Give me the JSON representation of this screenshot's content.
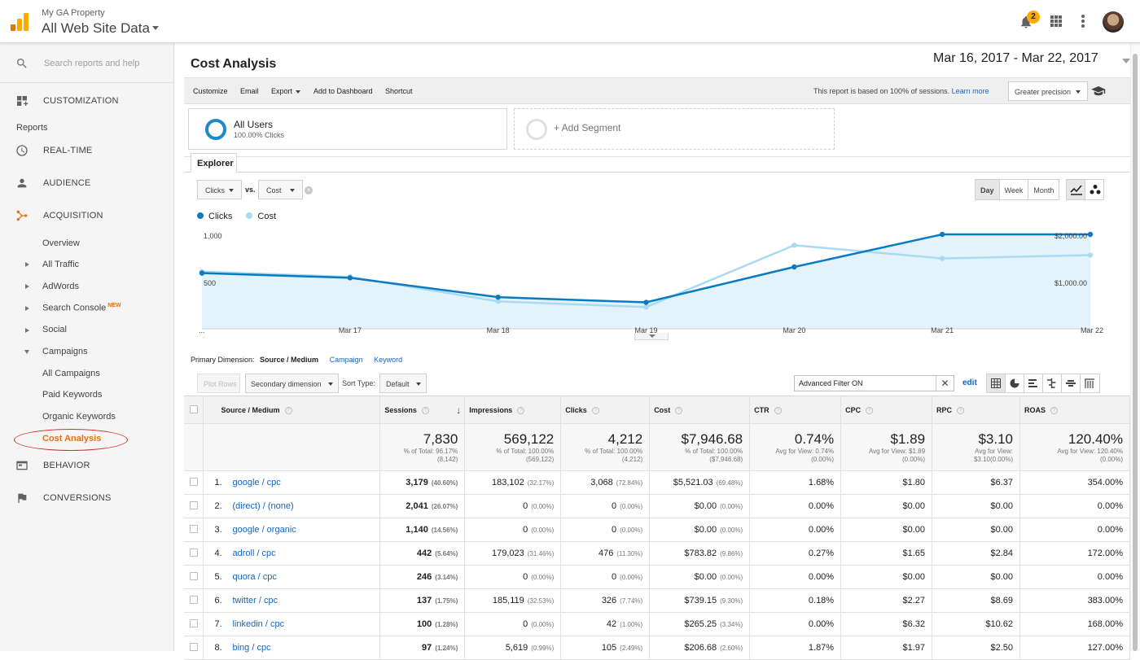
{
  "header": {
    "property_name": "My GA Property",
    "view_name": "All Web Site Data",
    "notification_count": "2",
    "brand_color": "#f9ab00"
  },
  "sidebar": {
    "search_placeholder": "Search reports and help",
    "customization": "CUSTOMIZATION",
    "reports_label": "Reports",
    "realtime": "REAL-TIME",
    "audience": "AUDIENCE",
    "acquisition": "ACQUISITION",
    "behavior": "BEHAVIOR",
    "conversions": "CONVERSIONS",
    "acq_items": {
      "overview": "Overview",
      "all_traffic": "All Traffic",
      "adwords": "AdWords",
      "search_console": "Search Console",
      "new_badge": "NEW",
      "social": "Social",
      "campaigns": "Campaigns",
      "all_campaigns": "All Campaigns",
      "paid_keywords": "Paid Keywords",
      "organic_keywords": "Organic Keywords",
      "cost_analysis": "Cost Analysis"
    },
    "active_color": "#e8710a"
  },
  "page": {
    "title": "Cost Analysis",
    "date_range": "Mar 16, 2017 - Mar 22, 2017"
  },
  "toolbar": {
    "customize": "Customize",
    "email": "Email",
    "export": "Export",
    "add_to_dashboard": "Add to Dashboard",
    "shortcut": "Shortcut",
    "report_note": "This report is based on 100% of sessions.",
    "learn_more": "Learn more",
    "precision": "Greater precision"
  },
  "segments": {
    "segment_name": "All Users",
    "segment_sub": "100.00% Clicks",
    "add_segment": "+ Add Segment"
  },
  "explorer": {
    "tab": "Explorer",
    "metric1": "Clicks",
    "vs": "vs.",
    "metric2": "Cost",
    "periods": [
      "Day",
      "Week",
      "Month"
    ],
    "active_period": "Day"
  },
  "chart_data": {
    "type": "line",
    "x": [
      "Mar 16",
      "Mar 17",
      "Mar 18",
      "Mar 19",
      "Mar 20",
      "Mar 21",
      "Mar 22"
    ],
    "x_tick_labels": [
      "...",
      "Mar 17",
      "Mar 18",
      "Mar 19",
      "Mar 20",
      "Mar 21",
      "Mar 22"
    ],
    "series": [
      {
        "name": "Clicks",
        "axis": "left",
        "color": "#0b7bc1",
        "values": [
          590,
          540,
          335,
          280,
          655,
          1000,
          1000
        ]
      },
      {
        "name": "Cost",
        "axis": "right",
        "color": "#a6dbf2",
        "values": [
          1210,
          1100,
          580,
          460,
          1770,
          1490,
          1560
        ]
      }
    ],
    "left_ticks": [
      "1,000",
      "500"
    ],
    "right_ticks": [
      "$2,000.00",
      "$1,000.00"
    ],
    "left_ylim": [
      0,
      1000
    ],
    "right_ylim": [
      0,
      2000
    ],
    "grid": false
  },
  "table_controls": {
    "primary_dimension_label": "Primary Dimension:",
    "primary_dimension": "Source / Medium",
    "other_dimensions": [
      "Campaign",
      "Keyword"
    ],
    "plot_rows": "Plot Rows",
    "secondary_dimension": "Secondary dimension",
    "sort_type_label": "Sort Type:",
    "sort_type": "Default",
    "filter_text": "Advanced Filter ON",
    "edit": "edit"
  },
  "table": {
    "columns": [
      "Source / Medium",
      "Sessions",
      "Impressions",
      "Clicks",
      "Cost",
      "CTR",
      "CPC",
      "RPC",
      "ROAS"
    ],
    "totals": [
      {
        "value": "7,830",
        "line1": "% of Total: 96.17%",
        "line2": "(8,142)"
      },
      {
        "value": "569,122",
        "line1": "% of Total: 100.00%",
        "line2": "(569,122)"
      },
      {
        "value": "4,212",
        "line1": "% of Total: 100.00%",
        "line2": "(4,212)"
      },
      {
        "value": "$7,946.68",
        "line1": "% of Total: 100.00%",
        "line2": "($7,946.68)"
      },
      {
        "value": "0.74%",
        "line1": "Avg for View: 0.74%",
        "line2": "(0.00%)"
      },
      {
        "value": "$1.89",
        "line1": "Avg for View: $1.89",
        "line2": "(0.00%)"
      },
      {
        "value": "$3.10",
        "line1": "Avg for View:",
        "line2": "$3.10(0.00%)"
      },
      {
        "value": "120.40%",
        "line1": "Avg for View: 120.40%",
        "line2": "(0.00%)"
      }
    ],
    "rows": [
      {
        "idx": "1.",
        "source": "google / cpc",
        "sessions": "3,179",
        "sessions_pct": "(40.60%)",
        "impressions": "183,102",
        "impressions_pct": "(32.17%)",
        "clicks": "3,068",
        "clicks_pct": "(72.84%)",
        "cost": "$5,521.03",
        "cost_pct": "(69.48%)",
        "ctr": "1.68%",
        "cpc": "$1.80",
        "rpc": "$6.37",
        "roas": "354.00%"
      },
      {
        "idx": "2.",
        "source": "(direct) / (none)",
        "sessions": "2,041",
        "sessions_pct": "(26.07%)",
        "impressions": "0",
        "impressions_pct": "(0.00%)",
        "clicks": "0",
        "clicks_pct": "(0.00%)",
        "cost": "$0.00",
        "cost_pct": "(0.00%)",
        "ctr": "0.00%",
        "cpc": "$0.00",
        "rpc": "$0.00",
        "roas": "0.00%"
      },
      {
        "idx": "3.",
        "source": "google / organic",
        "sessions": "1,140",
        "sessions_pct": "(14.56%)",
        "impressions": "0",
        "impressions_pct": "(0.00%)",
        "clicks": "0",
        "clicks_pct": "(0.00%)",
        "cost": "$0.00",
        "cost_pct": "(0.00%)",
        "ctr": "0.00%",
        "cpc": "$0.00",
        "rpc": "$0.00",
        "roas": "0.00%"
      },
      {
        "idx": "4.",
        "source": "adroll / cpc",
        "sessions": "442",
        "sessions_pct": "(5.64%)",
        "impressions": "179,023",
        "impressions_pct": "(31.46%)",
        "clicks": "476",
        "clicks_pct": "(11.30%)",
        "cost": "$783.82",
        "cost_pct": "(9.86%)",
        "ctr": "0.27%",
        "cpc": "$1.65",
        "rpc": "$2.84",
        "roas": "172.00%"
      },
      {
        "idx": "5.",
        "source": "quora / cpc",
        "sessions": "246",
        "sessions_pct": "(3.14%)",
        "impressions": "0",
        "impressions_pct": "(0.00%)",
        "clicks": "0",
        "clicks_pct": "(0.00%)",
        "cost": "$0.00",
        "cost_pct": "(0.00%)",
        "ctr": "0.00%",
        "cpc": "$0.00",
        "rpc": "$0.00",
        "roas": "0.00%"
      },
      {
        "idx": "6.",
        "source": "twitter / cpc",
        "sessions": "137",
        "sessions_pct": "(1.75%)",
        "impressions": "185,119",
        "impressions_pct": "(32.53%)",
        "clicks": "326",
        "clicks_pct": "(7.74%)",
        "cost": "$739.15",
        "cost_pct": "(9.30%)",
        "ctr": "0.18%",
        "cpc": "$2.27",
        "rpc": "$8.69",
        "roas": "383.00%"
      },
      {
        "idx": "7.",
        "source": "linkedin / cpc",
        "sessions": "100",
        "sessions_pct": "(1.28%)",
        "impressions": "0",
        "impressions_pct": "(0.00%)",
        "clicks": "42",
        "clicks_pct": "(1.00%)",
        "cost": "$265.25",
        "cost_pct": "(3.34%)",
        "ctr": "0.00%",
        "cpc": "$6.32",
        "rpc": "$10.62",
        "roas": "168.00%"
      },
      {
        "idx": "8.",
        "source": "bing / cpc",
        "sessions": "97",
        "sessions_pct": "(1.24%)",
        "impressions": "5,619",
        "impressions_pct": "(0.99%)",
        "clicks": "105",
        "clicks_pct": "(2.49%)",
        "cost": "$206.68",
        "cost_pct": "(2.60%)",
        "ctr": "1.87%",
        "cpc": "$1.97",
        "rpc": "$2.50",
        "roas": "127.00%"
      }
    ]
  }
}
